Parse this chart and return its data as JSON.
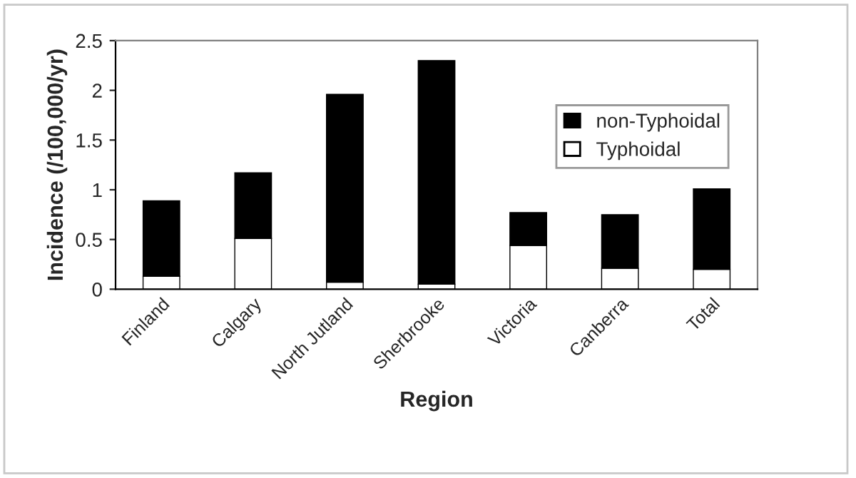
{
  "chart_data": {
    "type": "bar",
    "stacked": true,
    "xlabel": "Region",
    "ylabel": "Incidence (/100,000/yr)",
    "categories": [
      "Finland",
      "Calgary",
      "North Jutland",
      "Sherbrooke",
      "Victoria",
      "Canberra",
      "Total"
    ],
    "series": [
      {
        "name": "Typhoidal",
        "color": "#ffffff",
        "values": [
          0.13,
          0.51,
          0.07,
          0.05,
          0.44,
          0.21,
          0.2
        ]
      },
      {
        "name": "non-Typhoidal",
        "color": "#000000",
        "values": [
          0.76,
          0.66,
          1.89,
          2.25,
          0.33,
          0.54,
          0.81
        ]
      }
    ],
    "ylim": [
      0,
      2.5
    ],
    "yticks": [
      0,
      0.5,
      1,
      1.5,
      2,
      2.5
    ],
    "grid": false,
    "legend": "top right"
  }
}
